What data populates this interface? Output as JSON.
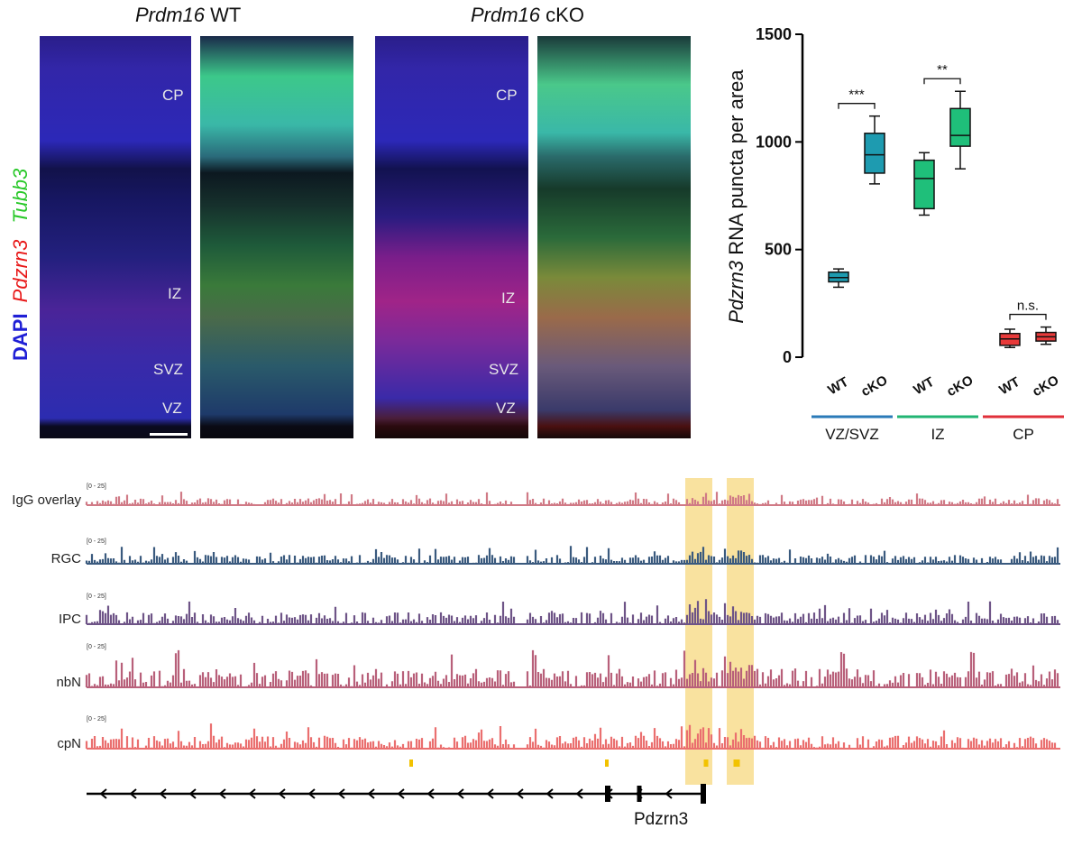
{
  "panels": {
    "wt_title_italic": "Prdm16",
    "wt_title_rest": " WT",
    "cko_title_italic": "Prdm16",
    "cko_title_rest": " cKO",
    "layer_labels": {
      "cp": "CP",
      "iz": "IZ",
      "svz": "SVZ",
      "vz": "VZ"
    },
    "stain_legend": {
      "dapi": "DAPI",
      "pdzrn3": "Pdzrn3",
      "tubb3": "Tubb3"
    },
    "stain_colors": {
      "dapi": "#1f1fd6",
      "pdzrn3": "#e81818",
      "tubb3": "#28c828"
    }
  },
  "chart_data": {
    "type": "box",
    "ylabel_italic": "Pdzrn3",
    "ylabel_rest": " RNA puncta per area",
    "ylim": [
      0,
      1500
    ],
    "yticks": [
      "0",
      "500",
      "1000",
      "1500"
    ],
    "categories": [
      "WT",
      "cKO",
      "WT",
      "cKO",
      "WT",
      "cKO"
    ],
    "groups": [
      {
        "name": "VZ/SVZ",
        "color": "#2a7ab8"
      },
      {
        "name": "IZ",
        "color": "#22b573"
      },
      {
        "name": "CP",
        "color": "#e0303a"
      }
    ],
    "boxes": [
      {
        "group": "VZ/SVZ",
        "label": "WT",
        "color": "#1e9bb0",
        "min": 325,
        "q1": 350,
        "median": 370,
        "q3": 395,
        "max": 410
      },
      {
        "group": "VZ/SVZ",
        "label": "cKO",
        "color": "#1e9bb0",
        "min": 805,
        "q1": 855,
        "median": 940,
        "q3": 1040,
        "max": 1120
      },
      {
        "group": "IZ",
        "label": "WT",
        "color": "#1fbf7a",
        "min": 660,
        "q1": 690,
        "median": 830,
        "q3": 915,
        "max": 950
      },
      {
        "group": "IZ",
        "label": "cKO",
        "color": "#1fbf7a",
        "min": 875,
        "q1": 980,
        "median": 1030,
        "q3": 1155,
        "max": 1235
      },
      {
        "group": "CP",
        "label": "WT",
        "color": "#e83a3a",
        "min": 45,
        "q1": 55,
        "median": 85,
        "q3": 110,
        "max": 130
      },
      {
        "group": "CP",
        "label": "cKO",
        "color": "#e83a3a",
        "min": 60,
        "q1": 75,
        "median": 95,
        "q3": 115,
        "max": 140
      }
    ],
    "significance": [
      {
        "group": "VZ/SVZ",
        "label": "***"
      },
      {
        "group": "IZ",
        "label": "**"
      },
      {
        "group": "CP",
        "label": "n.s."
      }
    ]
  },
  "tracks": {
    "range_label": "[0 - 25]",
    "items": [
      {
        "label": "IgG overlay",
        "color": "#d07a86"
      },
      {
        "label": "RGC",
        "color": "#3a5a7e"
      },
      {
        "label": "IPC",
        "color": "#6e5487"
      },
      {
        "label": "nbN",
        "color": "#b8607a"
      },
      {
        "label": "cpN",
        "color": "#ea6f6f"
      }
    ],
    "highlight_color": "#f6d36b",
    "peak_color": "#f2c200",
    "gene_name": "Pdzrn3"
  }
}
